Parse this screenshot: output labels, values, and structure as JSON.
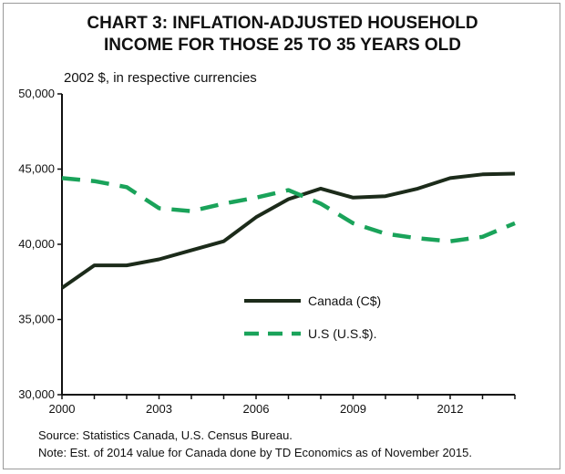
{
  "chart_data": {
    "type": "line",
    "title_line1": "CHART 3: INFLATION-ADJUSTED HOUSEHOLD",
    "title_line2": "INCOME FOR THOSE 25 TO 35 YEARS OLD",
    "ylabel": "2002 $, in respective currencies",
    "xlabel": "",
    "x": [
      2000,
      2001,
      2002,
      2003,
      2004,
      2005,
      2006,
      2007,
      2008,
      2009,
      2010,
      2011,
      2012,
      2013,
      2014
    ],
    "series": [
      {
        "name": "Canada (C$)",
        "style": "solid",
        "color": "#1c2b1a",
        "values": [
          37100,
          38600,
          38600,
          39000,
          39600,
          40200,
          41800,
          43000,
          43700,
          43100,
          43200,
          43700,
          44400,
          44650,
          44700
        ]
      },
      {
        "name": "U.S (U.S.$).",
        "style": "dashed",
        "color": "#1aa35a",
        "values": [
          44400,
          44200,
          43800,
          42400,
          42200,
          42700,
          43100,
          43600,
          42700,
          41400,
          40700,
          40400,
          40200,
          40500,
          41400
        ]
      }
    ],
    "yticks": [
      30000,
      35000,
      40000,
      45000,
      50000
    ],
    "ytick_labels": [
      "30,000",
      "35,000",
      "40,000",
      "45,000",
      "50,000"
    ],
    "xticks": [
      2000,
      2003,
      2006,
      2009,
      2012
    ],
    "xtick_labels": [
      "2000",
      "2003",
      "2006",
      "2009",
      "2012"
    ],
    "xlim": [
      2000,
      2014
    ],
    "ylim": [
      30000,
      50000
    ],
    "grid": false,
    "legend_position": "center"
  },
  "footer": {
    "source": "Source: Statistics Canada, U.S. Census Bureau.",
    "note": "Note: Est. of 2014 value for Canada done by TD Economics as of November 2015."
  }
}
